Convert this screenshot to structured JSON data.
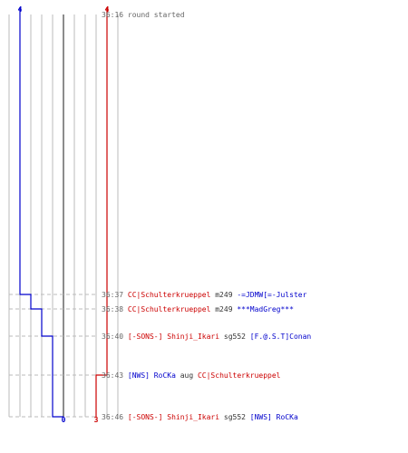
{
  "colors": {
    "blue": "#0000cc",
    "red": "#cc0000",
    "time": "#666666",
    "plain": "#666666",
    "weapon": "#333333",
    "grid": "#bbbbbb",
    "zero_line": "#666666",
    "dash": "#bbbbbb"
  },
  "chart_data": {
    "type": "line",
    "grid_columns": 10,
    "zero_column": 5,
    "series": [
      {
        "team": "blue",
        "start_label": "4",
        "end_label": "0",
        "values": [
          4,
          3,
          2,
          1,
          1,
          0
        ]
      },
      {
        "team": "red",
        "start_label": "4",
        "end_label": "3",
        "values": [
          4,
          4,
          4,
          4,
          3,
          3
        ]
      }
    ],
    "events": [
      {
        "time": "36:16",
        "parts": [
          {
            "text": "round started",
            "team": "plain"
          }
        ]
      },
      {
        "time": "36:37",
        "parts": [
          {
            "text": "CC|Schulterkrueppel",
            "team": "red"
          },
          {
            "text": " m249 ",
            "team": "weapon"
          },
          {
            "text": "-=JDMW[=-Julster",
            "team": "blue"
          }
        ]
      },
      {
        "time": "36:38",
        "parts": [
          {
            "text": "CC|Schulterkrueppel",
            "team": "red"
          },
          {
            "text": " m249 ",
            "team": "weapon"
          },
          {
            "text": "***MadGreg***",
            "team": "blue"
          }
        ]
      },
      {
        "time": "36:40",
        "parts": [
          {
            "text": "[-SONS-] Shinji_Ikari",
            "team": "red"
          },
          {
            "text": " sg552 ",
            "team": "weapon"
          },
          {
            "text": "[F.@.S.T]Conan",
            "team": "blue"
          }
        ]
      },
      {
        "time": "36:43",
        "parts": [
          {
            "text": "[NWS] RoCKa",
            "team": "blue"
          },
          {
            "text": " aug ",
            "team": "weapon"
          },
          {
            "text": "CC|Schulterkrueppel",
            "team": "red"
          }
        ]
      },
      {
        "time": "36:46",
        "parts": [
          {
            "text": "[-SONS-] Shinji_Ikari",
            "team": "red"
          },
          {
            "text": " sg552 ",
            "team": "weapon"
          },
          {
            "text": "[NWS] RoCKa",
            "team": "blue"
          }
        ]
      }
    ]
  }
}
